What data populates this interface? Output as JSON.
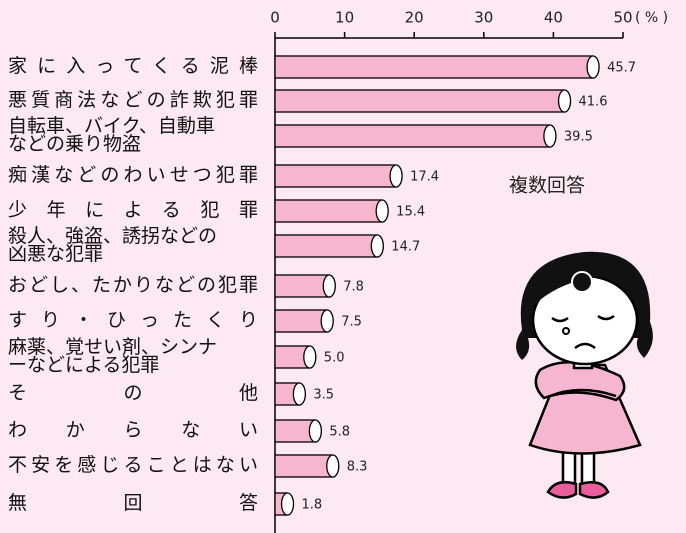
{
  "chart_data": {
    "type": "bar",
    "orientation": "horizontal",
    "categories": [
      "家に入ってくる泥棒",
      "悪質商法などの詐欺犯罪",
      "自転車、バイク、自動車\nなどの乗り物盗",
      "痴漢などのわいせつ犯罪",
      "少年による犯罪",
      "殺人、強盗、誘拐などの\n凶悪な犯罪",
      "おどし、たかりなどの犯罪",
      "すり・ひったくり",
      "麻薬、覚せい剤、シンナ\nーなどによる犯罪",
      "その他",
      "わからない",
      "不安を感じることはない",
      "無回答"
    ],
    "values": [
      45.7,
      41.6,
      39.5,
      17.4,
      15.4,
      14.7,
      7.8,
      7.5,
      5.0,
      3.5,
      5.8,
      8.3,
      1.8
    ],
    "value_labels": [
      "45.7",
      "41.6",
      "39.5",
      "17.4",
      "15.4",
      "14.7",
      "7.8",
      "7.5",
      "5.0",
      "3.5",
      "5.8",
      "8.3",
      "1.8"
    ],
    "color": "#f6b6d0",
    "xlim": [
      0,
      50
    ],
    "xticks": [
      0,
      10,
      20,
      30,
      40,
      50
    ],
    "x_unit": "( % )",
    "annotation": "複数回答"
  }
}
